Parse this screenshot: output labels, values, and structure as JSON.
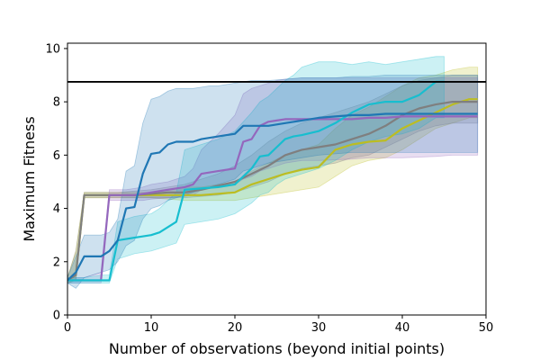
{
  "chart_data": {
    "type": "line",
    "title": "",
    "xlabel": "Number of observations (beyond initial points)",
    "ylabel": "Maximum Fitness",
    "xlim": [
      0,
      50
    ],
    "ylim": [
      0,
      10.2
    ],
    "xticks": [
      "0",
      "10",
      "20",
      "30",
      "40",
      "50"
    ],
    "yticks": [
      "0",
      "2",
      "4",
      "6",
      "8",
      "10"
    ],
    "grid": false,
    "legend": "none",
    "reference_line": {
      "y": 8.75,
      "color": "#000000"
    },
    "series": [
      {
        "color": "#bcbd22",
        "x": [
          0,
          1,
          2,
          4,
          6,
          8,
          10,
          12,
          14,
          16,
          18,
          20,
          22,
          24,
          26,
          28,
          30,
          32,
          34,
          36,
          38,
          40,
          42,
          44,
          46,
          48,
          49
        ],
        "y": [
          1.3,
          1.5,
          4.5,
          4.5,
          4.5,
          4.5,
          4.5,
          4.5,
          4.5,
          4.5,
          4.55,
          4.6,
          4.9,
          5.1,
          5.3,
          5.45,
          5.55,
          6.2,
          6.4,
          6.5,
          6.55,
          7.0,
          7.3,
          7.6,
          7.9,
          8.1,
          8.1
        ],
        "lower": [
          1.2,
          1.3,
          4.4,
          4.4,
          4.4,
          4.4,
          4.4,
          4.35,
          4.3,
          4.3,
          4.3,
          4.3,
          4.4,
          4.5,
          4.6,
          4.7,
          4.8,
          5.2,
          5.6,
          5.8,
          5.9,
          6.2,
          6.6,
          7.0,
          7.2,
          7.4,
          7.4
        ],
        "upper": [
          1.4,
          2.4,
          4.6,
          4.6,
          4.6,
          4.6,
          4.6,
          4.7,
          4.8,
          4.8,
          4.9,
          5.0,
          5.4,
          5.7,
          6.0,
          6.2,
          6.4,
          7.0,
          7.5,
          7.8,
          8.2,
          8.6,
          8.9,
          9.0,
          9.2,
          9.3,
          9.3
        ]
      },
      {
        "color": "#7f7f7f",
        "x": [
          0,
          1,
          2,
          4,
          6,
          8,
          10,
          12,
          14,
          16,
          18,
          20,
          22,
          24,
          26,
          28,
          30,
          32,
          34,
          36,
          38,
          40,
          42,
          44,
          46,
          48,
          49
        ],
        "y": [
          1.3,
          1.5,
          4.5,
          4.5,
          4.5,
          4.5,
          4.55,
          4.6,
          4.6,
          4.7,
          4.85,
          5.0,
          5.3,
          5.6,
          6.0,
          6.2,
          6.3,
          6.4,
          6.6,
          6.8,
          7.1,
          7.5,
          7.75,
          7.9,
          8.0,
          8.0,
          8.0
        ],
        "lower": [
          1.2,
          1.3,
          4.4,
          4.4,
          4.4,
          4.4,
          4.4,
          4.4,
          4.4,
          4.45,
          4.5,
          4.6,
          4.8,
          5.0,
          5.3,
          5.5,
          5.6,
          5.7,
          5.9,
          6.0,
          6.3,
          6.6,
          6.9,
          7.1,
          7.2,
          7.2,
          7.2
        ],
        "upper": [
          1.4,
          2.4,
          4.6,
          4.6,
          4.6,
          4.65,
          4.7,
          4.8,
          4.9,
          5.1,
          5.3,
          5.6,
          6.0,
          6.5,
          6.9,
          7.2,
          7.4,
          7.6,
          7.8,
          8.0,
          8.3,
          8.6,
          8.8,
          8.9,
          9.0,
          9.0,
          9.0
        ]
      },
      {
        "color": "#9467bd",
        "x": [
          0,
          2,
          4,
          5,
          6,
          7,
          8,
          9,
          10,
          12,
          14,
          15,
          16,
          18,
          20,
          21,
          22,
          23,
          24,
          25,
          26,
          28,
          30,
          34,
          36,
          38,
          40,
          44,
          46,
          49
        ],
        "y": [
          1.3,
          1.3,
          1.3,
          4.5,
          4.5,
          4.5,
          4.5,
          4.55,
          4.6,
          4.7,
          4.8,
          4.9,
          5.3,
          5.4,
          5.5,
          6.5,
          6.6,
          7.1,
          7.25,
          7.3,
          7.35,
          7.35,
          7.35,
          7.35,
          7.4,
          7.4,
          7.45,
          7.45,
          7.45,
          7.45
        ],
        "lower": [
          1.2,
          1.2,
          1.2,
          4.3,
          4.3,
          4.3,
          4.3,
          4.3,
          4.35,
          4.4,
          4.45,
          4.5,
          4.7,
          4.8,
          4.9,
          5.1,
          5.2,
          5.4,
          5.5,
          5.6,
          5.7,
          5.8,
          5.8,
          5.85,
          5.9,
          5.9,
          5.9,
          5.95,
          6.0,
          6.0
        ],
        "upper": [
          1.4,
          1.4,
          1.6,
          4.7,
          4.7,
          4.7,
          4.75,
          4.8,
          4.9,
          5.0,
          5.2,
          5.5,
          6.2,
          6.8,
          7.5,
          8.3,
          8.5,
          8.6,
          8.7,
          8.8,
          8.85,
          8.9,
          8.9,
          8.9,
          8.9,
          8.9,
          8.9,
          8.9,
          8.9,
          8.9
        ]
      },
      {
        "color": "#17becf",
        "x": [
          0,
          2,
          4,
          5,
          6,
          7,
          8,
          10,
          11,
          12,
          13,
          14,
          16,
          18,
          20,
          22,
          23,
          24,
          25,
          26,
          27,
          28,
          30,
          32,
          34,
          36,
          38,
          40,
          42,
          44,
          45
        ],
        "y": [
          1.3,
          1.3,
          1.3,
          1.3,
          2.8,
          2.85,
          2.9,
          3.0,
          3.1,
          3.3,
          3.5,
          4.7,
          4.75,
          4.8,
          4.9,
          5.5,
          5.95,
          6.0,
          6.3,
          6.6,
          6.7,
          6.75,
          6.9,
          7.2,
          7.6,
          7.9,
          8.0,
          8.0,
          8.25,
          8.75,
          8.75
        ],
        "lower": [
          1.2,
          1.2,
          1.2,
          1.2,
          2.1,
          2.2,
          2.3,
          2.4,
          2.5,
          2.6,
          2.7,
          3.4,
          3.5,
          3.6,
          3.8,
          4.2,
          4.5,
          4.6,
          4.9,
          5.1,
          5.2,
          5.3,
          5.5,
          5.8,
          6.2,
          6.5,
          6.7,
          6.8,
          7.0,
          7.4,
          7.4
        ],
        "upper": [
          1.4,
          1.4,
          1.5,
          1.5,
          3.5,
          3.6,
          3.7,
          3.8,
          4.0,
          4.3,
          4.6,
          6.2,
          6.4,
          6.6,
          6.9,
          7.6,
          8.0,
          8.2,
          8.5,
          8.8,
          9.0,
          9.3,
          9.5,
          9.5,
          9.4,
          9.5,
          9.4,
          9.5,
          9.6,
          9.7,
          9.7
        ]
      },
      {
        "color": "#1f77b4",
        "x": [
          0,
          1,
          2,
          3,
          4,
          5,
          6,
          7,
          8,
          9,
          10,
          11,
          12,
          13,
          14,
          15,
          16,
          17,
          18,
          19,
          20,
          21,
          22,
          24,
          26,
          28,
          30,
          32,
          34,
          36,
          38,
          40,
          42,
          44,
          46,
          49
        ],
        "y": [
          1.3,
          1.6,
          2.2,
          2.2,
          2.2,
          2.4,
          2.8,
          4.0,
          4.05,
          5.3,
          6.05,
          6.1,
          6.4,
          6.5,
          6.5,
          6.5,
          6.6,
          6.65,
          6.7,
          6.75,
          6.8,
          7.1,
          7.1,
          7.1,
          7.2,
          7.3,
          7.4,
          7.45,
          7.5,
          7.5,
          7.55,
          7.55,
          7.55,
          7.55,
          7.55,
          7.55
        ],
        "lower": [
          1.2,
          1.0,
          1.4,
          1.5,
          1.6,
          1.7,
          2.0,
          2.6,
          2.8,
          3.6,
          4.0,
          4.1,
          4.3,
          4.4,
          4.5,
          4.6,
          4.7,
          4.8,
          4.9,
          5.0,
          5.1,
          5.4,
          5.5,
          5.7,
          5.8,
          5.9,
          6.0,
          6.05,
          6.1,
          6.1,
          6.1,
          6.1,
          6.1,
          6.1,
          6.1,
          6.1
        ],
        "upper": [
          1.4,
          2.2,
          3.0,
          3.0,
          3.0,
          3.1,
          3.6,
          5.4,
          5.6,
          7.2,
          8.1,
          8.2,
          8.4,
          8.5,
          8.5,
          8.5,
          8.55,
          8.6,
          8.6,
          8.65,
          8.7,
          8.75,
          8.8,
          8.8,
          8.85,
          8.9,
          8.9,
          8.9,
          8.95,
          8.95,
          9.0,
          9.0,
          9.0,
          9.0,
          9.0,
          9.0
        ]
      }
    ]
  }
}
